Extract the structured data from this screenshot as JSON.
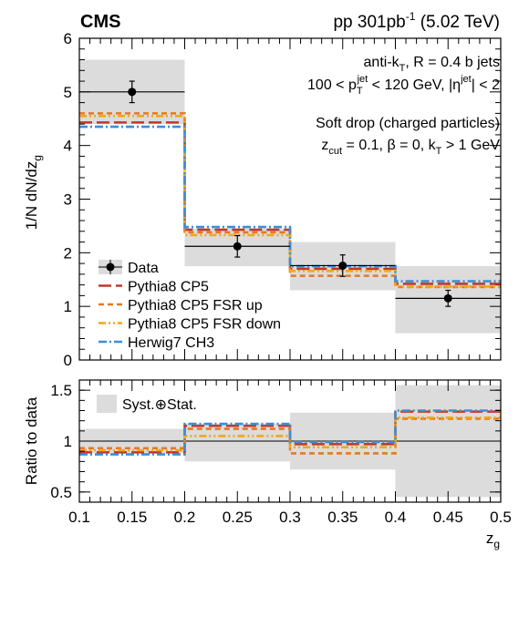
{
  "header": {
    "experiment": "CMS",
    "lumi_prefix": "pp 301",
    "lumi_unit": "pb",
    "lumi_exp": "-1",
    "energy": "(5.02 TeV)"
  },
  "annotations": {
    "jet_def_a": "anti-k",
    "jet_def_sub": "T",
    "jet_def_b": ", R = 0.4 b jets",
    "pt_a": "100 < p",
    "pt_sub": "T",
    "pt_sup": "jet",
    "pt_b": " < 120 GeV, |η",
    "pt_sup2": "jet",
    "pt_c": "| < 2",
    "groom_1": "Soft drop (charged particles)",
    "groom_2a": "z",
    "groom_2sub": "cut",
    "groom_2b": " = 0.1, β = 0, k",
    "groom_2sub2": "T",
    "groom_2c": " > 1 GeV"
  },
  "chart_data": [
    {
      "type": "line",
      "panel": "main",
      "ylabel": "1/N dN/dz_g",
      "ylim": [
        0,
        6
      ],
      "xlim": [
        0.1,
        0.5
      ],
      "yticks": [
        "0",
        "1",
        "2",
        "3",
        "4",
        "5",
        "6"
      ],
      "bin_edges": [
        0.1,
        0.2,
        0.3,
        0.4,
        0.5
      ],
      "data": {
        "name": "Data",
        "x": [
          0.15,
          0.25,
          0.35,
          0.45
        ],
        "y": [
          5.0,
          2.12,
          1.76,
          1.15
        ],
        "stat_err": [
          0.2,
          0.2,
          0.2,
          0.15
        ],
        "syst_band": [
          [
            4.4,
            5.6
          ],
          [
            1.75,
            2.45
          ],
          [
            1.3,
            2.2
          ],
          [
            0.5,
            1.75
          ]
        ]
      },
      "series": [
        {
          "name": "Pythia8 CP5",
          "values": [
            4.43,
            2.43,
            1.7,
            1.42
          ],
          "color": "#c0392b",
          "dash": "long"
        },
        {
          "name": "Pythia8 CP5 FSR up",
          "values": [
            4.6,
            2.38,
            1.57,
            1.36
          ],
          "color": "#e87722",
          "dash": "short"
        },
        {
          "name": "Pythia8 CP5 FSR down",
          "values": [
            4.55,
            2.33,
            1.66,
            1.37
          ],
          "color": "#f0a818",
          "dash": "dashdotdot"
        },
        {
          "name": "Herwig7 CH3",
          "values": [
            4.35,
            2.48,
            1.75,
            1.47
          ],
          "color": "#3a8fd6",
          "dash": "dashdot"
        }
      ]
    },
    {
      "type": "line",
      "panel": "ratio",
      "ylabel": "Ratio to data",
      "xlabel": "z_g",
      "ylim": [
        0.4,
        1.6
      ],
      "xlim": [
        0.1,
        0.5
      ],
      "yticks": [
        "0.5",
        "1",
        "1.5"
      ],
      "xticks": [
        "0.1",
        "0.15",
        "0.2",
        "0.25",
        "0.3",
        "0.35",
        "0.4",
        "0.45",
        "0.5"
      ],
      "band_label": "Syst.⊕Stat.",
      "band": [
        [
          0.88,
          1.12
        ],
        [
          0.8,
          1.17
        ],
        [
          0.72,
          1.28
        ],
        [
          0.45,
          1.55
        ]
      ],
      "reference": 1.0,
      "series": [
        {
          "name": "Pythia8 CP5",
          "values": [
            0.89,
            1.15,
            0.97,
            1.29
          ]
        },
        {
          "name": "Pythia8 CP5 FSR up",
          "values": [
            0.93,
            1.12,
            0.88,
            1.22
          ]
        },
        {
          "name": "Pythia8 CP5 FSR down",
          "values": [
            0.91,
            1.05,
            0.94,
            1.23
          ]
        },
        {
          "name": "Herwig7 CH3",
          "values": [
            0.87,
            1.17,
            0.99,
            1.3
          ]
        }
      ]
    }
  ]
}
